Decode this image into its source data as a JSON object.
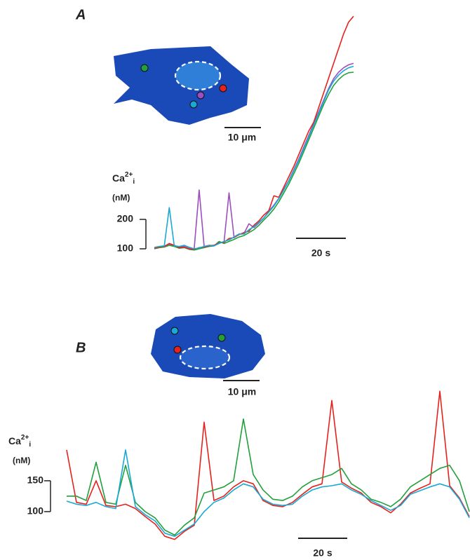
{
  "chart_data": [
    {
      "type": "line",
      "panel": "A",
      "ylabel": {
        "base": "Ca",
        "sup": "2+",
        "sub": "i"
      },
      "yunits": "(nM)",
      "x": [
        0,
        2,
        4,
        6,
        8,
        10,
        12,
        14,
        16,
        18,
        20,
        22,
        24,
        26,
        28,
        30,
        32,
        34,
        36,
        38,
        40,
        42,
        44,
        46,
        48,
        50,
        52,
        54,
        56,
        58,
        60,
        62,
        64,
        66,
        68,
        70,
        72,
        74,
        76,
        78,
        80
      ],
      "series": [
        {
          "color": "#9b4fc0",
          "values": [
            104,
            107,
            109,
            116,
            111,
            106,
            110,
            104,
            100,
            300,
            108,
            112,
            112,
            120,
            124,
            290,
            140,
            150,
            152,
            185,
            172,
            188,
            205,
            228,
            248,
            272,
            302,
            332,
            368,
            405,
            445,
            485,
            525,
            565,
            605,
            645,
            678,
            700,
            715,
            725,
            730
          ]
        },
        {
          "color": "#22a03c",
          "values": [
            100,
            104,
            106,
            112,
            108,
            102,
            104,
            98,
            96,
            100,
            104,
            108,
            110,
            125,
            118,
            125,
            132,
            140,
            145,
            155,
            165,
            180,
            198,
            215,
            235,
            260,
            290,
            320,
            355,
            390,
            430,
            470,
            510,
            550,
            590,
            625,
            655,
            675,
            690,
            698,
            700
          ]
        },
        {
          "color": "#e5221c",
          "values": [
            102,
            106,
            108,
            118,
            112,
            104,
            106,
            100,
            98,
            104,
            106,
            110,
            112,
            120,
            122,
            135,
            138,
            148,
            155,
            160,
            180,
            195,
            215,
            230,
            280,
            275,
            310,
            345,
            380,
            420,
            460,
            500,
            530,
            580,
            630,
            680,
            730,
            780,
            830,
            870,
            890
          ]
        },
        {
          "color": "#1aa8d4",
          "values": [
            105,
            108,
            110,
            240,
            110,
            108,
            112,
            105,
            100,
            103,
            108,
            112,
            110,
            118,
            125,
            130,
            140,
            150,
            150,
            165,
            175,
            190,
            205,
            225,
            245,
            270,
            300,
            330,
            365,
            400,
            440,
            480,
            520,
            560,
            600,
            640,
            670,
            690,
            705,
            715,
            720
          ]
        }
      ],
      "xlim": [
        0,
        80
      ],
      "ylim": [
        80,
        900
      ],
      "yticks": [
        100,
        200
      ],
      "scalebar": {
        "value": 20,
        "label": "20 s"
      },
      "image_scalebar": {
        "value": 10,
        "label": "10 μm"
      }
    },
    {
      "type": "line",
      "panel": "B",
      "ylabel": {
        "base": "Ca",
        "sup": "2+",
        "sub": "i"
      },
      "yunits": "(nM)",
      "x": [
        0,
        4,
        8,
        12,
        16,
        20,
        24,
        28,
        32,
        36,
        40,
        44,
        48,
        52,
        56,
        60,
        64,
        68,
        72,
        76,
        80,
        84,
        88,
        92,
        96,
        100,
        104,
        108,
        112,
        116,
        120,
        124,
        128,
        132,
        136,
        140,
        144,
        148,
        152,
        156,
        160,
        164
      ],
      "series": [
        {
          "color": "#e5221c",
          "values": [
            200,
            115,
            112,
            150,
            110,
            108,
            112,
            105,
            92,
            80,
            60,
            55,
            68,
            78,
            245,
            118,
            125,
            140,
            150,
            145,
            118,
            110,
            108,
            115,
            128,
            140,
            145,
            280,
            148,
            138,
            130,
            115,
            108,
            98,
            112,
            130,
            138,
            145,
            295,
            142,
            122,
            92
          ]
        },
        {
          "color": "#22a03c",
          "values": [
            125,
            125,
            118,
            180,
            115,
            112,
            175,
            115,
            100,
            90,
            70,
            62,
            78,
            90,
            130,
            135,
            140,
            150,
            250,
            160,
            135,
            120,
            118,
            125,
            140,
            150,
            155,
            160,
            170,
            145,
            135,
            120,
            115,
            108,
            120,
            140,
            150,
            160,
            170,
            175,
            150,
            100
          ]
        },
        {
          "color": "#1aa8d4",
          "values": [
            117,
            112,
            110,
            115,
            108,
            105,
            200,
            108,
            95,
            85,
            65,
            60,
            70,
            80,
            100,
            115,
            122,
            135,
            145,
            140,
            120,
            112,
            110,
            112,
            125,
            135,
            140,
            142,
            145,
            135,
            128,
            118,
            110,
            102,
            110,
            128,
            134,
            140,
            145,
            140,
            120,
            90
          ]
        }
      ],
      "xlim": [
        0,
        164
      ],
      "ylim": [
        50,
        310
      ],
      "yticks": [
        100,
        150
      ],
      "scalebar": {
        "value": 20,
        "label": "20 s"
      },
      "image_scalebar": {
        "value": 10,
        "label": "10 μm"
      }
    }
  ]
}
